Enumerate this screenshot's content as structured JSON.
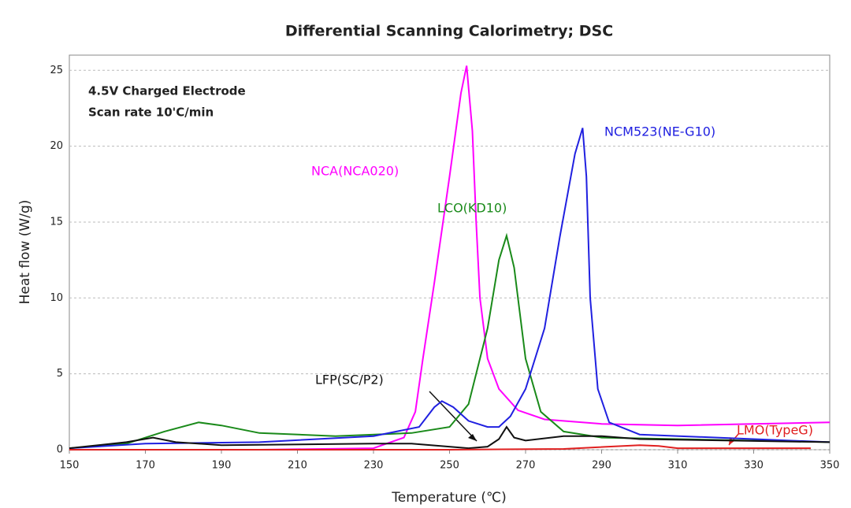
{
  "chart_data": {
    "type": "line",
    "title": "Differential Scanning Calorimetry; DSC",
    "xlabel": "Temperature (℃)",
    "ylabel": "Heat flow (W/g)",
    "annotations": [
      "4.5V Charged Electrode",
      "Scan rate 10'C/min"
    ],
    "xlim": [
      150,
      350
    ],
    "xticks": [
      150,
      170,
      190,
      210,
      230,
      250,
      270,
      290,
      310,
      330,
      350
    ],
    "ylim": [
      0,
      26
    ],
    "yticks": [
      0,
      5,
      10,
      15,
      20,
      25
    ],
    "grid": true,
    "series": [
      {
        "name": "NCA(NCA020)",
        "color": "#ff00ff",
        "x": [
          150,
          200,
          230,
          238,
          241,
          243,
          246,
          250,
          253,
          254.5,
          256,
          257,
          258,
          260,
          263,
          268,
          275,
          290,
          310,
          350
        ],
        "values": [
          0,
          0,
          0.1,
          0.8,
          2.5,
          6,
          11,
          18,
          23.5,
          25.3,
          21,
          15,
          10,
          6,
          4,
          2.6,
          2,
          1.7,
          1.6,
          1.8
        ]
      },
      {
        "name": "LCO(KD10)",
        "color": "#1a8a1a",
        "x": [
          150,
          165,
          175,
          184,
          190,
          200,
          220,
          240,
          250,
          255,
          260,
          263,
          265,
          267,
          270,
          274,
          280,
          290,
          350
        ],
        "values": [
          0.1,
          0.4,
          1.2,
          1.8,
          1.6,
          1.1,
          0.9,
          1.1,
          1.5,
          3,
          8,
          12.5,
          14.1,
          12,
          6,
          2.5,
          1.2,
          0.8,
          0.5
        ]
      },
      {
        "name": "NCM523(NE-G10)",
        "color": "#2020e0",
        "x": [
          150,
          170,
          200,
          230,
          242,
          246,
          248,
          251,
          255,
          260,
          263,
          266,
          270,
          275,
          279,
          283,
          285,
          286,
          287,
          289,
          292,
          300,
          350
        ],
        "values": [
          0.1,
          0.4,
          0.5,
          0.9,
          1.5,
          2.8,
          3.2,
          2.8,
          1.9,
          1.5,
          1.5,
          2.2,
          4,
          8,
          14,
          19.5,
          21.2,
          18,
          10,
          4,
          1.8,
          1,
          0.5
        ]
      },
      {
        "name": "LFP(SC/P2)",
        "color": "#111111",
        "x": [
          150,
          165,
          172,
          178,
          190,
          230,
          240,
          255,
          260,
          263,
          265,
          267,
          270,
          280,
          290,
          300,
          350
        ],
        "values": [
          0.1,
          0.5,
          0.8,
          0.5,
          0.3,
          0.4,
          0.4,
          0.1,
          0.2,
          0.7,
          1.5,
          0.8,
          0.6,
          0.9,
          0.9,
          0.7,
          0.5
        ]
      },
      {
        "name": "LMO(TypeG)",
        "color": "#e02020",
        "x": [
          150,
          250,
          280,
          300,
          305,
          310,
          345
        ],
        "values": [
          0,
          0,
          0.05,
          0.3,
          0.25,
          0.1,
          0.1
        ]
      }
    ]
  }
}
